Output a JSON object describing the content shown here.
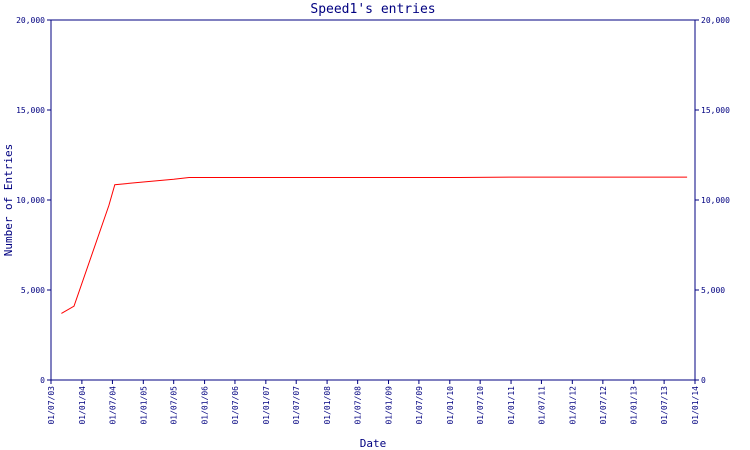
{
  "chart_data": {
    "type": "line",
    "title": "Speed1's entries",
    "xlabel": "Date",
    "ylabel": "Number of Entries",
    "ylim": [
      0,
      20000
    ],
    "y_ticks": [
      0,
      5000,
      10000,
      15000,
      20000
    ],
    "y_tick_labels": [
      "0",
      "5,000",
      "10,000",
      "15,000",
      "20,000"
    ],
    "right_axis": true,
    "grid": false,
    "x_ticks": [
      "01/07/03",
      "01/01/04",
      "01/07/04",
      "01/01/05",
      "01/07/05",
      "01/01/06",
      "01/07/06",
      "01/01/07",
      "01/07/07",
      "01/01/08",
      "01/07/08",
      "01/01/09",
      "01/07/09",
      "01/01/10",
      "01/07/10",
      "01/01/11",
      "01/07/11",
      "01/01/12",
      "01/07/12",
      "01/01/13",
      "01/07/13",
      "01/01/14"
    ],
    "series": [
      {
        "color": "#ff0000",
        "x": [
          "2003-09-01",
          "2003-11-15",
          "2004-06-10",
          "2004-07-15",
          "2005-01-01",
          "2005-07-01",
          "2005-10-01",
          "2006-07-01",
          "2007-07-01",
          "2008-07-01",
          "2009-07-01",
          "2010-03-01",
          "2011-01-01",
          "2012-01-01",
          "2013-01-01",
          "2013-11-15"
        ],
        "y": [
          3700,
          4100,
          9700,
          10850,
          11000,
          11150,
          11250,
          11250,
          11250,
          11250,
          11250,
          11250,
          11270,
          11270,
          11270,
          11270
        ]
      }
    ]
  }
}
